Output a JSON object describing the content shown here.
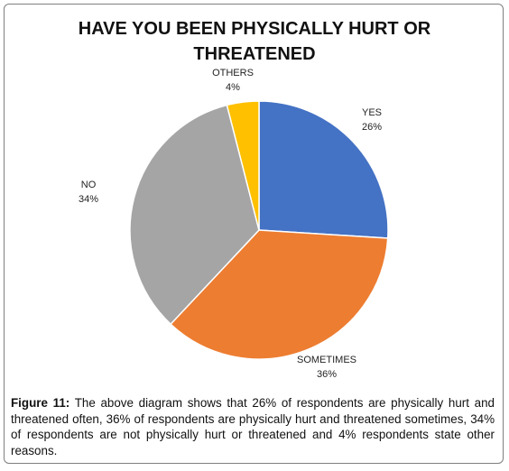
{
  "chart_data": {
    "type": "pie",
    "title": "HAVE YOU BEEN PHYSICALLY HURT OR THREATENED",
    "start": "top, clockwise",
    "slices": [
      {
        "label": "YES",
        "value": 26,
        "value_label": "26%",
        "color": "#4472C4"
      },
      {
        "label": "SOMETIMES",
        "value": 36,
        "value_label": "36%",
        "color": "#ED7D31"
      },
      {
        "label": "NO",
        "value": 34,
        "value_label": "34%",
        "color": "#A5A5A5"
      },
      {
        "label": "OTHERS",
        "value": 4,
        "value_label": "4%",
        "color": "#FFC000"
      }
    ]
  },
  "caption": {
    "figure_label": "Figure 11:",
    "text": "The above diagram shows that 26% of respondents are physically hurt and threatened often, 36% of respondents are physically hurt and threatened sometimes, 34% of respondents are not physically hurt or threatened and 4% respondents state other reasons."
  }
}
